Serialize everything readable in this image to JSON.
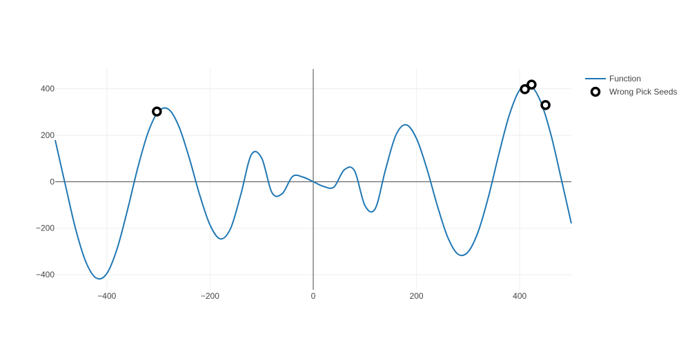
{
  "chart_data": {
    "type": "line",
    "xlim": [
      -500,
      500
    ],
    "ylim": [
      -465,
      485
    ],
    "xticks": [
      -400,
      -200,
      0,
      200,
      400
    ],
    "yticks": [
      -400,
      -200,
      0,
      200,
      400
    ],
    "xtick_labels": [
      "−400",
      "−200",
      "0",
      "200",
      "400"
    ],
    "ytick_labels": [
      "−400",
      "−200",
      "0",
      "200",
      "400"
    ],
    "grid": true,
    "zero_lines": true,
    "legend_position": "top-right",
    "colors": {
      "function": "#1f77b4",
      "seeds": "#000000",
      "grid": "#eeeeee",
      "zeroline": "#444444"
    },
    "series": [
      {
        "name": "Function",
        "mode": "lines",
        "x": [
          -500,
          -480,
          -460,
          -440,
          -420,
          -400,
          -380,
          -360,
          -340,
          -320,
          -300,
          -280,
          -260,
          -240,
          -220,
          -200,
          -180,
          -160,
          -140,
          -120,
          -100,
          -80,
          -60,
          -40,
          -20,
          0,
          20,
          40,
          60,
          80,
          100,
          120,
          140,
          160,
          180,
          200,
          220,
          240,
          260,
          280,
          300,
          320,
          340,
          360,
          380,
          400,
          420,
          440,
          460,
          480,
          500
        ],
        "y": [
          179,
          -17,
          -207,
          -348,
          -415,
          -395,
          -288,
          -122,
          60,
          212,
          302,
          311,
          236,
          100,
          -57,
          -186,
          -246,
          -200,
          -52,
          116,
          102,
          -47,
          -51,
          23,
          20,
          0,
          -20,
          -23,
          51,
          47,
          -102,
          -116,
          52,
          200,
          245,
          186,
          57,
          -100,
          -236,
          -311,
          -302,
          -212,
          -60,
          122,
          288,
          395,
          415,
          348,
          207,
          17,
          -179
        ]
      },
      {
        "name": "Wrong Pick Seeds",
        "mode": "markers",
        "x": [
          -303,
          410,
          423,
          450
        ],
        "y": [
          302,
          398,
          418,
          330
        ]
      }
    ]
  }
}
